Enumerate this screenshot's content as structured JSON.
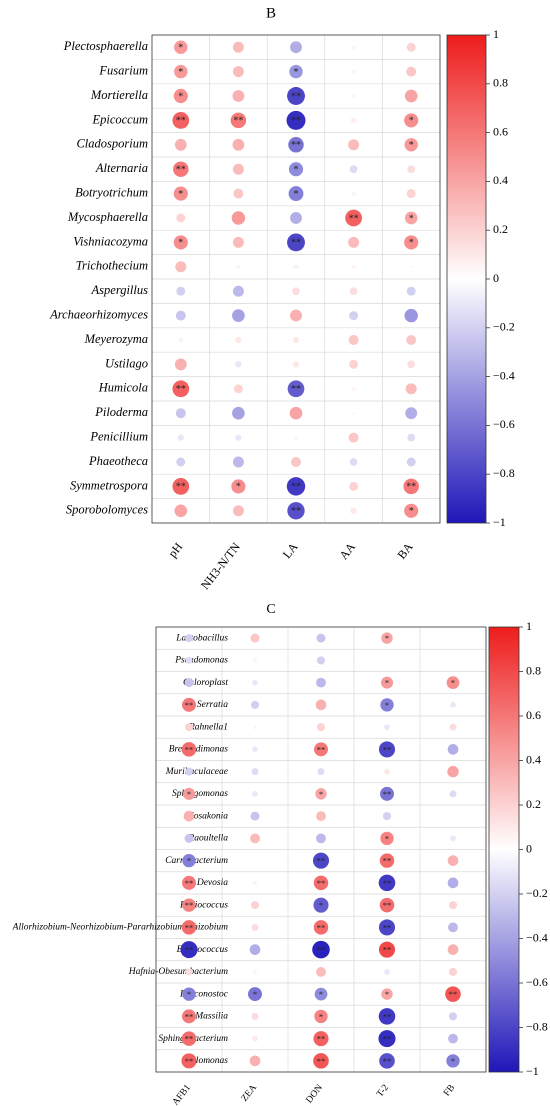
{
  "colors": {
    "positive": "#ee1c1c",
    "negative": "#1f16b8",
    "neutral": "#ffffff",
    "grid": "#d9d9d9",
    "border": "#333333"
  },
  "chart_data": [
    {
      "type": "heatmap",
      "panel_label": "B",
      "rows": [
        "Plectosphaerella",
        "Fusarium",
        "Mortierella",
        "Epicoccum",
        "Cladosporium",
        "Alternaria",
        "Botryotrichum",
        "Mycosphaerella",
        "Vishniacozyma",
        "Trichothecium",
        "Aspergillus",
        "Archaeorhizomyces",
        "Meyerozyma",
        "Ustilago",
        "Humicola",
        "Piloderma",
        "Penicillium",
        "Phaeotheca",
        "Symmetrospora",
        "Sporobolomyces"
      ],
      "columns": [
        "pH",
        "NH3-N/TN",
        "LA",
        "AA",
        "BA"
      ],
      "values": [
        [
          0.45,
          0.3,
          -0.35,
          0.05,
          0.2
        ],
        [
          0.45,
          0.3,
          -0.45,
          0.05,
          0.25
        ],
        [
          0.5,
          0.35,
          -0.8,
          0.05,
          0.4
        ],
        [
          0.7,
          0.6,
          -0.9,
          0.08,
          0.5
        ],
        [
          0.35,
          0.35,
          -0.6,
          0.3,
          0.45
        ],
        [
          0.6,
          0.3,
          -0.5,
          -0.15,
          0.15
        ],
        [
          0.5,
          0.25,
          -0.55,
          -0.05,
          0.2
        ],
        [
          0.2,
          0.45,
          -0.35,
          0.7,
          0.4
        ],
        [
          0.5,
          0.3,
          -0.8,
          0.3,
          0.5
        ],
        [
          0.3,
          0.05,
          -0.05,
          0.05,
          0.03
        ],
        [
          -0.2,
          -0.3,
          0.15,
          0.15,
          -0.2
        ],
        [
          -0.25,
          -0.4,
          0.35,
          -0.2,
          -0.45
        ],
        [
          -0.05,
          0.1,
          0.1,
          0.25,
          0.25
        ],
        [
          0.35,
          -0.1,
          0.1,
          0.2,
          0.15
        ],
        [
          0.7,
          0.2,
          -0.7,
          0.05,
          0.3
        ],
        [
          -0.25,
          -0.4,
          0.4,
          0.03,
          -0.35
        ],
        [
          -0.1,
          -0.1,
          0.05,
          0.25,
          -0.15
        ],
        [
          -0.2,
          -0.3,
          0.25,
          -0.15,
          -0.2
        ],
        [
          0.7,
          0.5,
          -0.85,
          0.2,
          0.6
        ],
        [
          0.4,
          0.3,
          -0.75,
          0.1,
          0.5
        ]
      ],
      "significance": [
        [
          "*",
          "",
          "",
          "",
          ""
        ],
        [
          "*",
          "",
          "*",
          "",
          ""
        ],
        [
          "*",
          "",
          "**",
          "",
          ""
        ],
        [
          "**",
          "**",
          "**",
          "",
          "*"
        ],
        [
          "",
          "",
          "**",
          "",
          "*"
        ],
        [
          "**",
          "",
          "*",
          "",
          ""
        ],
        [
          "*",
          "",
          "*",
          "",
          ""
        ],
        [
          "",
          "",
          "",
          "**",
          "*"
        ],
        [
          "*",
          "",
          "**",
          "",
          "*"
        ],
        [
          "",
          "",
          "",
          "",
          ""
        ],
        [
          "",
          "",
          "",
          "",
          ""
        ],
        [
          "",
          "",
          "",
          "",
          ""
        ],
        [
          "",
          "",
          "",
          "",
          ""
        ],
        [
          "",
          "",
          "",
          "",
          ""
        ],
        [
          "**",
          "",
          "**",
          "",
          ""
        ],
        [
          "",
          "",
          "",
          "",
          ""
        ],
        [
          "",
          "",
          "",
          "",
          ""
        ],
        [
          "",
          "",
          "",
          "",
          ""
        ],
        [
          "**",
          "*",
          "**",
          "",
          "**"
        ],
        [
          "",
          "",
          "**",
          "",
          "*"
        ]
      ],
      "colorbar": {
        "range": [
          -1,
          1
        ],
        "ticks": [
          "1",
          "0.8",
          "0.6",
          "0.4",
          "0.2",
          "0",
          "−0.2",
          "−0.4",
          "−0.6",
          "−0.8",
          "−1"
        ]
      }
    },
    {
      "type": "heatmap",
      "panel_label": "C",
      "rows": [
        "Lactobacillus",
        "Pseudomonas",
        "Chloroplast",
        "Serratia",
        "Rahnella1",
        "Brevundimonas",
        "Muribaculaceae",
        "Sphingomonas",
        "Kosakonia",
        "Raoultella",
        "Carnobacterium",
        "Devosia",
        "Pediococcus",
        "Allorhizobium-Neorhizobium-Pararhizobium-Rhizobium",
        "Enterococcus",
        "Hafnia-Obesumbacterium",
        "Leuconostoc",
        "Massilia",
        "Sphingobacterium",
        "Halomonas"
      ],
      "columns": [
        "AFB1",
        "ZEA",
        "DON",
        "T-2",
        "FB"
      ],
      "values": [
        [
          -0.2,
          0.25,
          -0.25,
          0.4,
          0.0
        ],
        [
          -0.15,
          0.05,
          -0.2,
          0.0,
          0.0
        ],
        [
          -0.25,
          -0.1,
          -0.3,
          0.45,
          0.5
        ],
        [
          0.6,
          -0.2,
          0.35,
          -0.55,
          -0.1
        ],
        [
          0.2,
          0.05,
          0.2,
          -0.1,
          0.15
        ],
        [
          0.65,
          -0.1,
          0.6,
          -0.8,
          -0.35
        ],
        [
          -0.2,
          -0.15,
          -0.15,
          0.1,
          0.4
        ],
        [
          0.45,
          -0.1,
          0.4,
          -0.6,
          -0.15
        ],
        [
          0.35,
          -0.25,
          0.3,
          -0.2,
          0.0
        ],
        [
          -0.25,
          0.3,
          -0.3,
          0.55,
          -0.1
        ],
        [
          -0.55,
          0.0,
          -0.8,
          0.65,
          0.35
        ],
        [
          0.6,
          -0.05,
          0.65,
          -0.85,
          -0.35
        ],
        [
          0.55,
          0.2,
          -0.7,
          0.65,
          0.2
        ],
        [
          0.65,
          0.15,
          0.65,
          -0.8,
          -0.3
        ],
        [
          -0.9,
          -0.35,
          -0.95,
          0.8,
          0.35
        ],
        [
          0.15,
          0.05,
          0.3,
          -0.1,
          0.2
        ],
        [
          -0.55,
          -0.6,
          -0.5,
          0.4,
          0.75
        ],
        [
          0.6,
          0.15,
          0.55,
          -0.85,
          -0.2
        ],
        [
          0.65,
          0.1,
          0.7,
          -0.9,
          -0.3
        ],
        [
          0.7,
          0.35,
          0.75,
          -0.75,
          -0.55
        ]
      ],
      "significance": [
        [
          "",
          "",
          "",
          "*",
          ""
        ],
        [
          "",
          "",
          "",
          "",
          ""
        ],
        [
          "",
          "",
          "",
          "*",
          "*"
        ],
        [
          "**",
          "",
          "",
          "*",
          ""
        ],
        [
          "",
          "",
          "",
          "",
          ""
        ],
        [
          "**",
          "",
          "**",
          "**",
          ""
        ],
        [
          "",
          "",
          "",
          "",
          ""
        ],
        [
          "*",
          "",
          "*",
          "**",
          ""
        ],
        [
          "",
          "",
          "",
          "",
          ""
        ],
        [
          "",
          "",
          "",
          "*",
          ""
        ],
        [
          "*",
          "",
          "**",
          "**",
          ""
        ],
        [
          "**",
          "",
          "**",
          "**",
          ""
        ],
        [
          "**",
          "",
          "*",
          "**",
          ""
        ],
        [
          "**",
          "",
          "**",
          "**",
          ""
        ],
        [
          "**",
          "",
          "**",
          "**",
          ""
        ],
        [
          "",
          "",
          "",
          "",
          ""
        ],
        [
          "*",
          "*",
          "*",
          "*",
          "**"
        ],
        [
          "**",
          "",
          "*",
          "**",
          ""
        ],
        [
          "**",
          "",
          "**",
          "**",
          ""
        ],
        [
          "**",
          "",
          "**",
          "**",
          "*"
        ]
      ],
      "colorbar": {
        "range": [
          -1,
          1
        ],
        "ticks": [
          "1",
          "0.8",
          "0.6",
          "0.4",
          "0.2",
          "0",
          "−0.2",
          "−0.4",
          "−0.6",
          "−0.8",
          "−1"
        ]
      }
    }
  ]
}
